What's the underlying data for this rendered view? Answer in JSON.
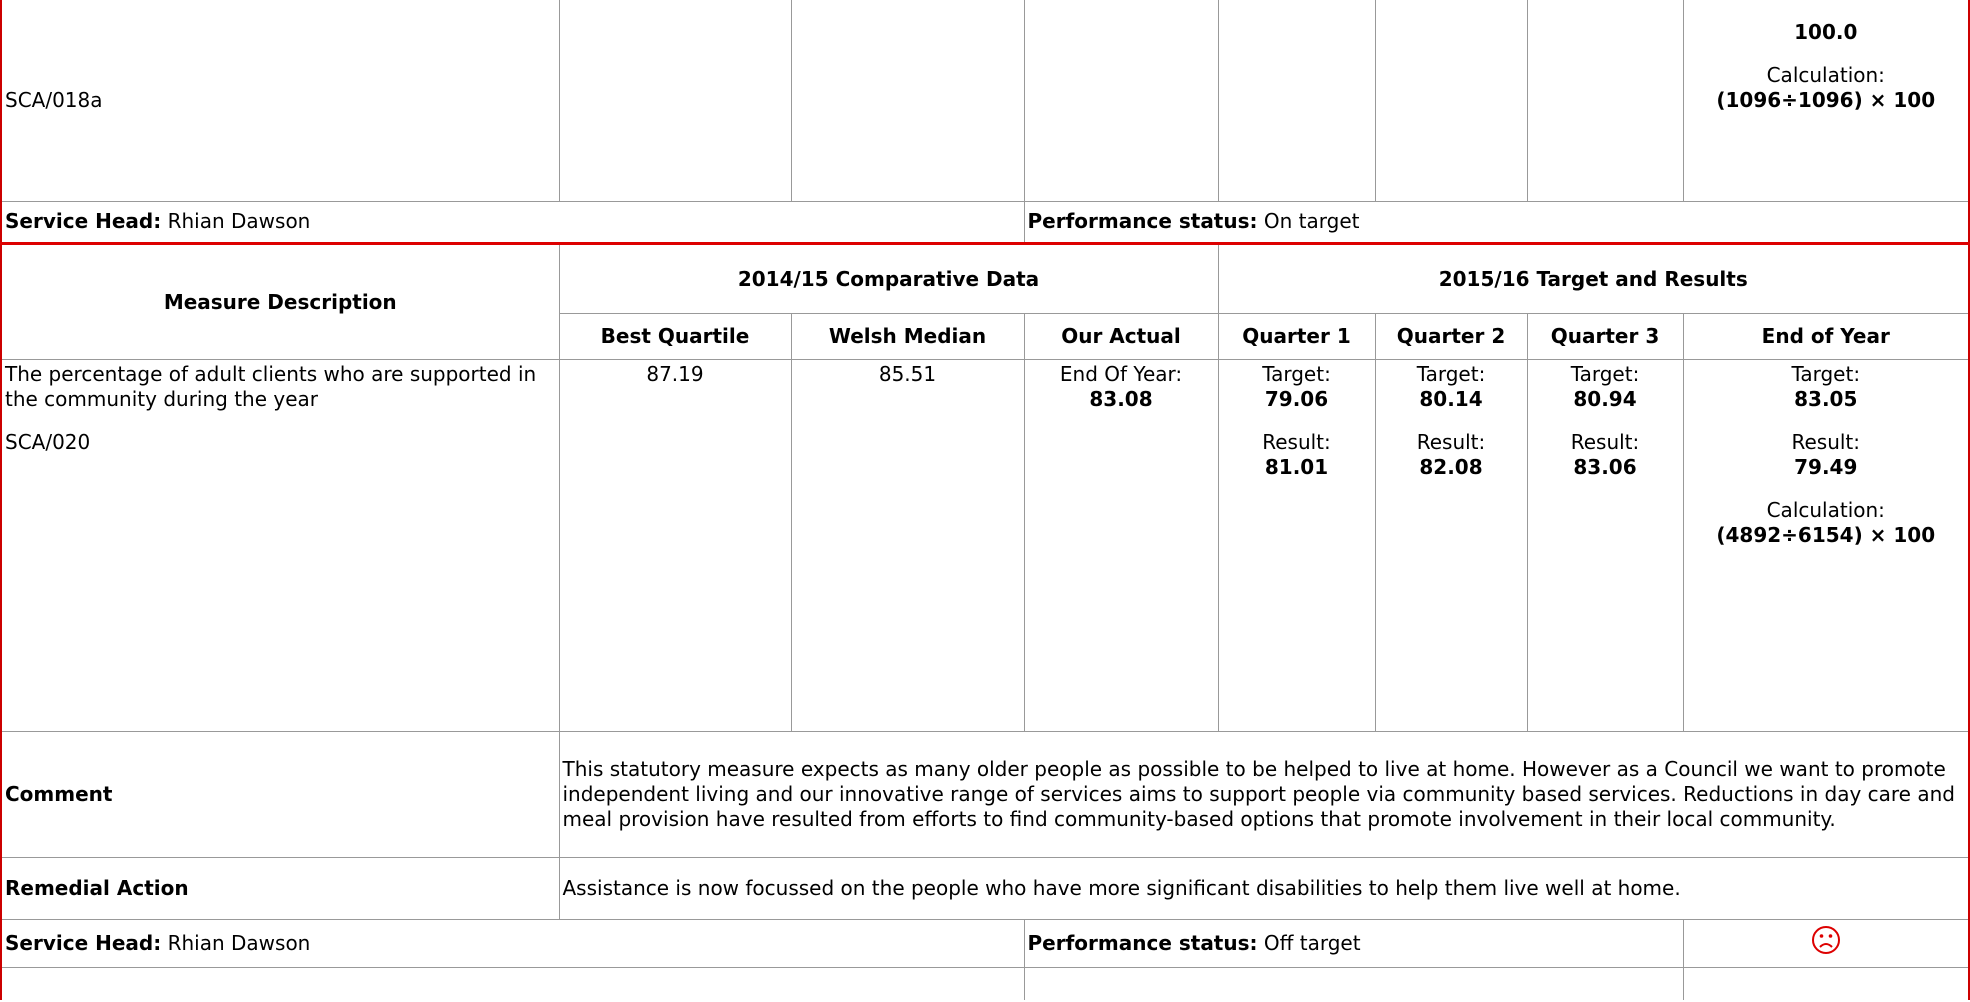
{
  "block1": {
    "measure_code": "SCA/018a",
    "end_of_year": {
      "value": "100.0",
      "calculation_label": "Calculation:",
      "calculation": "(1096÷1096) × 100"
    },
    "service_head_label": "Service Head:",
    "service_head": "Rhian Dawson",
    "status_label": "Performance status:",
    "status": "On target"
  },
  "block2": {
    "headers": {
      "measure_description": "Measure Description",
      "comparative": "2014/15 Comparative Data",
      "targets": "2015/16 Target and Results",
      "best_quartile": "Best Quartile",
      "welsh_median": "Welsh Median",
      "our_actual": "Our Actual",
      "quarter_1": "Quarter 1",
      "quarter_2": "Quarter 2",
      "quarter_3": "Quarter 3",
      "end_of_year": "End of Year"
    },
    "measure": {
      "description": "The percentage of adult clients who are supported in the community during the year",
      "code": "SCA/020",
      "best_quartile": "87.19",
      "welsh_median": "85.51",
      "our_actual_label": "End Of Year:",
      "our_actual": "83.08",
      "target_label": "Target:",
      "result_label": "Result:",
      "quarters": [
        {
          "target": "79.06",
          "result": "81.01"
        },
        {
          "target": "80.14",
          "result": "82.08"
        },
        {
          "target": "80.94",
          "result": "83.06"
        }
      ],
      "end_of_year": {
        "target": "83.05",
        "result": "79.49",
        "calculation_label": "Calculation:",
        "calculation": "(4892÷6154) × 100"
      }
    },
    "comment_label": "Comment",
    "comment": "This statutory measure expects as many older people as possible to be helped to live at home. However as a Council we want to promote independent living and our innovative range of services aims to support people via community based services. Reductions in day care and meal provision have resulted from efforts to find community-based options that promote involvement in their local community.",
    "remedial_label": "Remedial Action",
    "remedial": "Assistance is now focussed on the people who have more significant disabilities to help them live well at home.",
    "service_head_label": "Service Head:",
    "service_head": "Rhian Dawson",
    "status_label": "Performance status:",
    "status": "Off target"
  }
}
